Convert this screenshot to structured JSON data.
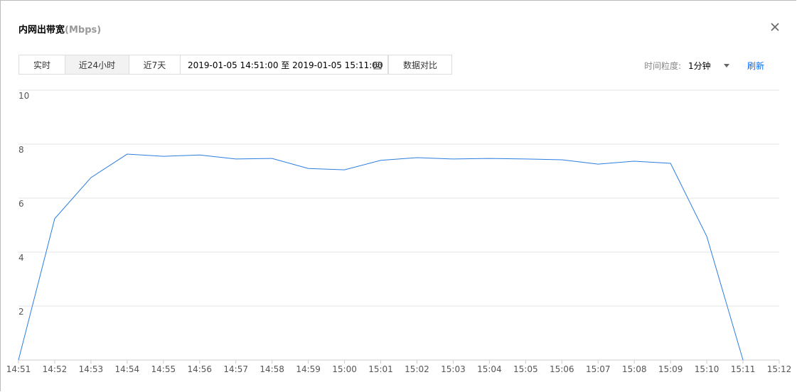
{
  "header": {
    "title": "内网出带宽",
    "unit": "(Mbps)"
  },
  "toolbar": {
    "tabs": [
      "实时",
      "近24小时",
      "近7天"
    ],
    "range_start": "2019-01-05 14:51:00",
    "range_sep": "至",
    "range_end": "2019-01-05 15:11:00",
    "compare": "数据对比",
    "granularity_label": "时间粒度:",
    "granularity": "1分钟",
    "refresh": "刷新"
  },
  "chart_data": {
    "type": "line",
    "categories": [
      "14:51",
      "14:52",
      "14:53",
      "14:54",
      "14:55",
      "14:56",
      "14:57",
      "14:58",
      "14:59",
      "15:00",
      "15:01",
      "15:02",
      "15:03",
      "15:04",
      "15:05",
      "15:06",
      "15:07",
      "15:08",
      "15:09",
      "15:10",
      "15:11",
      "15:12"
    ],
    "values": [
      0,
      5.24,
      6.76,
      7.63,
      7.55,
      7.6,
      7.45,
      7.47,
      7.1,
      7.05,
      7.4,
      7.5,
      7.45,
      7.47,
      7.45,
      7.42,
      7.26,
      7.37,
      7.29,
      4.58,
      0,
      null
    ],
    "color": "#2b7de0",
    "ylim": [
      0,
      10
    ],
    "yticks": [
      2,
      4,
      6,
      8,
      10
    ],
    "grid": true
  }
}
